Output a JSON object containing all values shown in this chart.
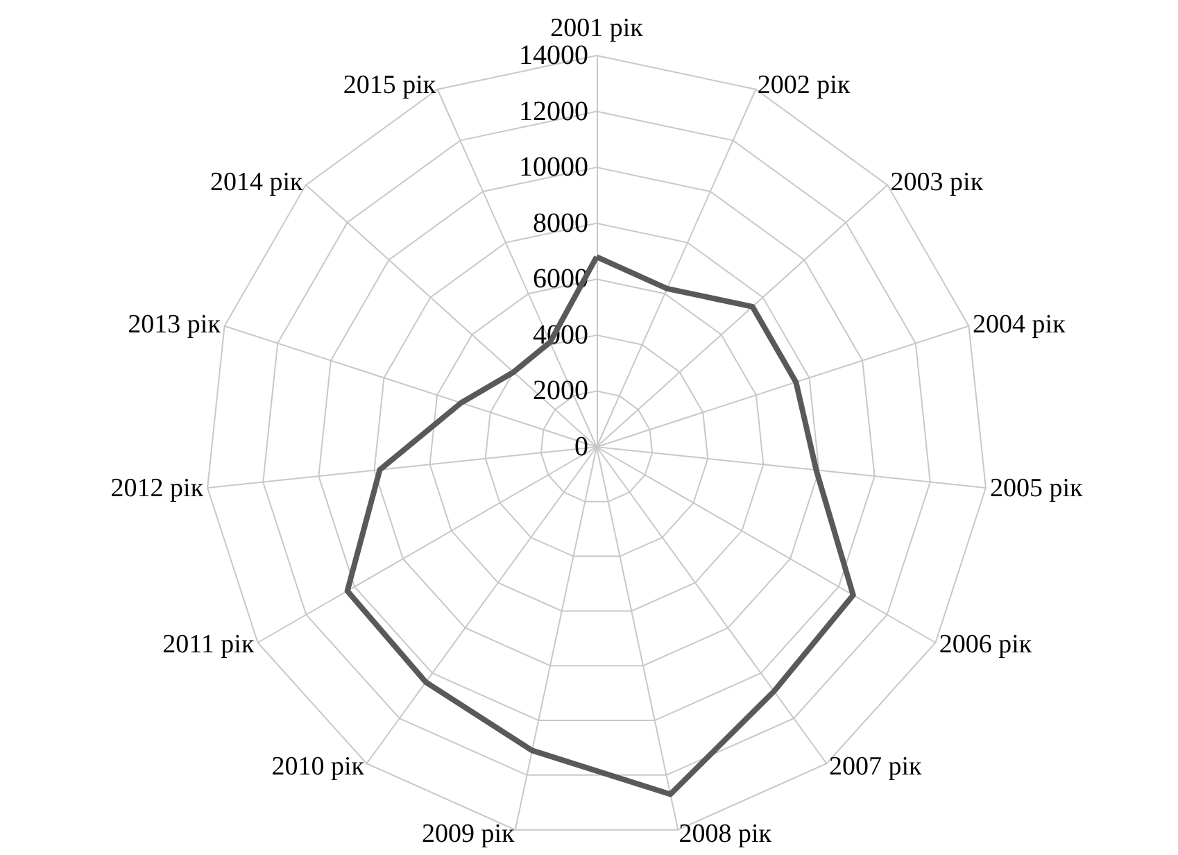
{
  "chart_data": {
    "type": "radar",
    "categories": [
      "2001 рік",
      "2002 рік",
      "2003 рік",
      "2004 рік",
      "2005 рік",
      "2006 рік",
      "2007 рік",
      "2008 рік",
      "2009 рік",
      "2010 рік",
      "2011 рік",
      "2012 рік",
      "2013 рік",
      "2014 рік",
      "2015 рік"
    ],
    "series": [
      {
        "color": "#595959",
        "values": [
          6800,
          6200,
          7500,
          7500,
          7900,
          10600,
          10800,
          12700,
          11100,
          10400,
          10300,
          7800,
          5100,
          4000,
          4100
        ]
      }
    ],
    "ylim": [
      0,
      14000
    ],
    "yticks": [
      0,
      2000,
      4000,
      6000,
      8000,
      10000,
      12000,
      14000
    ],
    "marker": "none",
    "line_style": "solid"
  }
}
